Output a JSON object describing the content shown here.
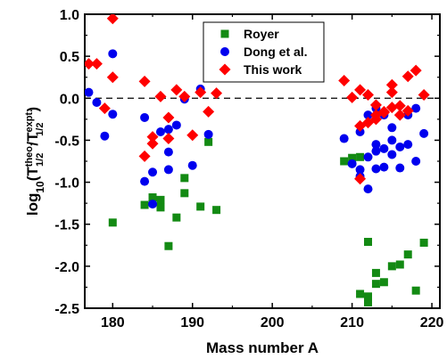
{
  "chart_data": {
    "type": "scatter",
    "xlabel": "Mass number A",
    "ylabel": {
      "prefix": "log",
      "base": "10",
      "open": "(T",
      "sup1": "theo.",
      "sub1": "1/2",
      "slash": "/T",
      "sup2": "expt.",
      "sub2": "1/2",
      "close": ")"
    },
    "xlim": [
      176.5,
      221
    ],
    "ylim": [
      -2.5,
      1.0
    ],
    "xticks": [
      180,
      190,
      200,
      210,
      220
    ],
    "xtick_labels": [
      "180",
      "190",
      "200",
      "210",
      "220"
    ],
    "yticks": [
      1.0,
      0.5,
      0.0,
      -0.5,
      -1.0,
      -1.5,
      -2.0,
      -2.5
    ],
    "ytick_labels": [
      "1.0",
      "0.5",
      "0.0",
      "-0.5",
      "-1.0",
      "-1.5",
      "-2.0",
      "-2.5"
    ],
    "reference_line": 0.0,
    "legend_position": "top-center",
    "series": [
      {
        "name": "Royer",
        "marker": "square",
        "color": "#138a13",
        "points": [
          [
            180,
            -1.48
          ],
          [
            184,
            -1.27
          ],
          [
            185,
            -1.18
          ],
          [
            186,
            -1.21
          ],
          [
            186,
            -1.3
          ],
          [
            187,
            -1.76
          ],
          [
            188,
            -1.42
          ],
          [
            189,
            -0.95
          ],
          [
            189,
            -1.13
          ],
          [
            191,
            -1.29
          ],
          [
            192,
            -0.52
          ],
          [
            193,
            -1.33
          ],
          [
            209,
            -0.75
          ],
          [
            210,
            -0.71
          ],
          [
            211,
            -0.7
          ],
          [
            211,
            -2.33
          ],
          [
            212,
            -1.71
          ],
          [
            212,
            -2.43
          ],
          [
            212,
            -2.36
          ],
          [
            213,
            -2.08
          ],
          [
            213,
            -2.21
          ],
          [
            214,
            -2.19
          ],
          [
            215,
            -2.0
          ],
          [
            216,
            -1.98
          ],
          [
            217,
            -1.86
          ],
          [
            218,
            -2.29
          ],
          [
            219,
            -1.72
          ]
        ]
      },
      {
        "name": "Dong et al.",
        "marker": "circle",
        "color": "#0000ee",
        "points": [
          [
            177,
            0.07
          ],
          [
            178,
            -0.05
          ],
          [
            179,
            -0.45
          ],
          [
            180,
            0.53
          ],
          [
            180,
            -0.19
          ],
          [
            184,
            -0.23
          ],
          [
            184,
            -0.99
          ],
          [
            185,
            -0.88
          ],
          [
            185,
            -1.26
          ],
          [
            186,
            -0.4
          ],
          [
            187,
            -0.37
          ],
          [
            187,
            -0.64
          ],
          [
            187,
            -0.85
          ],
          [
            188,
            -0.32
          ],
          [
            189,
            -0.01
          ],
          [
            190,
            -0.8
          ],
          [
            191,
            0.11
          ],
          [
            192,
            -0.43
          ],
          [
            209,
            -0.48
          ],
          [
            210,
            -0.78
          ],
          [
            211,
            -0.4
          ],
          [
            211,
            -0.85
          ],
          [
            211,
            -0.93
          ],
          [
            212,
            -0.2
          ],
          [
            212,
            -0.7
          ],
          [
            212,
            -1.08
          ],
          [
            213,
            -0.12
          ],
          [
            213,
            -0.55
          ],
          [
            213,
            -0.63
          ],
          [
            213,
            -0.84
          ],
          [
            214,
            -0.2
          ],
          [
            214,
            -0.6
          ],
          [
            214,
            -0.82
          ],
          [
            215,
            -0.35
          ],
          [
            215,
            -0.5
          ],
          [
            215,
            -0.67
          ],
          [
            216,
            -0.58
          ],
          [
            216,
            -0.83
          ],
          [
            217,
            -0.2
          ],
          [
            217,
            -0.55
          ],
          [
            218,
            -0.12
          ],
          [
            218,
            -0.75
          ],
          [
            219,
            -0.42
          ]
        ]
      },
      {
        "name": "This work",
        "marker": "diamond",
        "color": "#ff0000",
        "points": [
          [
            177,
            0.41
          ],
          [
            178,
            0.41
          ],
          [
            179,
            -0.12
          ],
          [
            180,
            0.95
          ],
          [
            180,
            0.25
          ],
          [
            184,
            0.2
          ],
          [
            184,
            -0.69
          ],
          [
            185,
            -0.46
          ],
          [
            185,
            -0.54
          ],
          [
            186,
            0.02
          ],
          [
            187,
            -0.23
          ],
          [
            187,
            -0.48
          ],
          [
            188,
            0.1
          ],
          [
            189,
            0.02
          ],
          [
            190,
            -0.44
          ],
          [
            191,
            0.07
          ],
          [
            192,
            -0.16
          ],
          [
            193,
            0.06
          ],
          [
            209,
            0.21
          ],
          [
            210,
            0.01
          ],
          [
            211,
            -0.33
          ],
          [
            211,
            0.1
          ],
          [
            211,
            -0.96
          ],
          [
            212,
            0.04
          ],
          [
            212,
            -0.29
          ],
          [
            213,
            -0.08
          ],
          [
            213,
            -0.25
          ],
          [
            213,
            -0.2
          ],
          [
            214,
            -0.17
          ],
          [
            214,
            -0.16
          ],
          [
            215,
            0.16
          ],
          [
            215,
            0.07
          ],
          [
            215,
            -0.11
          ],
          [
            216,
            -0.09
          ],
          [
            216,
            -0.2
          ],
          [
            217,
            0.26
          ],
          [
            217,
            -0.15
          ],
          [
            218,
            0.33
          ],
          [
            219,
            0.04
          ]
        ]
      }
    ]
  }
}
